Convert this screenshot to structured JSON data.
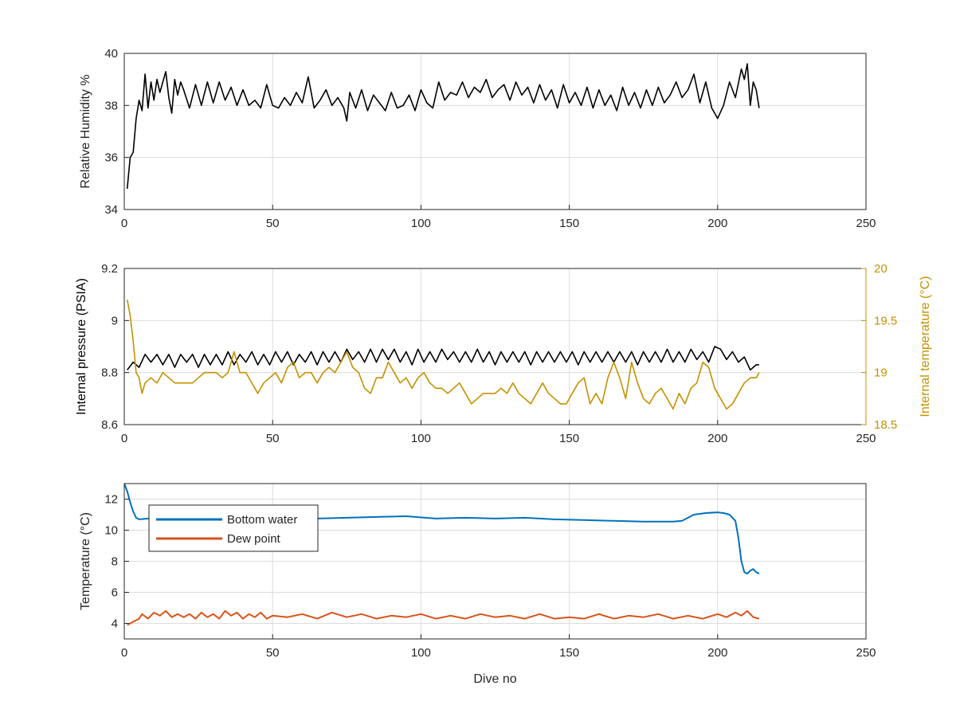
{
  "chart_data": [
    {
      "type": "line",
      "panel": "top",
      "xlabel": "",
      "ylabel": "Relative Humidity %",
      "xlim": [
        0,
        250
      ],
      "ylim": [
        34,
        40
      ],
      "xticks": [
        0,
        50,
        100,
        150,
        200,
        250
      ],
      "yticks": [
        34,
        36,
        38,
        40
      ],
      "grid": true,
      "series": [
        {
          "color": "#000000",
          "x": [
            1,
            2,
            3,
            4,
            5,
            6,
            7,
            8,
            9,
            10,
            11,
            12,
            13,
            14,
            15,
            16,
            17,
            18,
            19,
            20,
            22,
            24,
            26,
            28,
            30,
            32,
            34,
            36,
            38,
            40,
            42,
            44,
            46,
            48,
            50,
            52,
            54,
            56,
            58,
            60,
            62,
            64,
            66,
            68,
            70,
            72,
            74,
            75,
            76,
            78,
            80,
            82,
            84,
            86,
            88,
            90,
            92,
            94,
            96,
            98,
            100,
            102,
            104,
            106,
            108,
            110,
            112,
            114,
            116,
            118,
            120,
            122,
            124,
            126,
            128,
            130,
            132,
            134,
            136,
            138,
            140,
            142,
            144,
            146,
            148,
            150,
            152,
            154,
            156,
            158,
            160,
            162,
            164,
            166,
            168,
            170,
            172,
            174,
            176,
            178,
            180,
            182,
            184,
            186,
            188,
            190,
            192,
            194,
            196,
            198,
            200,
            202,
            204,
            206,
            208,
            209,
            210,
            211,
            212,
            213,
            214
          ],
          "y": [
            34.8,
            36.0,
            36.2,
            37.5,
            38.2,
            37.8,
            39.2,
            37.9,
            38.9,
            38.2,
            39.0,
            38.5,
            38.9,
            39.3,
            38.3,
            37.7,
            39.0,
            38.4,
            38.9,
            38.6,
            37.9,
            38.8,
            38.0,
            38.9,
            38.1,
            38.9,
            38.2,
            38.7,
            38.0,
            38.6,
            38.0,
            38.2,
            37.9,
            38.8,
            38.0,
            37.9,
            38.3,
            38.0,
            38.5,
            38.1,
            39.1,
            37.9,
            38.2,
            38.6,
            38.0,
            38.3,
            37.9,
            37.4,
            38.5,
            37.9,
            38.6,
            37.8,
            38.4,
            38.1,
            37.8,
            38.5,
            37.9,
            38.0,
            38.4,
            37.8,
            38.6,
            38.1,
            37.9,
            38.9,
            38.2,
            38.5,
            38.4,
            38.9,
            38.3,
            38.7,
            38.5,
            39.0,
            38.3,
            38.6,
            38.8,
            38.2,
            38.9,
            38.4,
            38.7,
            38.1,
            38.8,
            38.2,
            38.6,
            37.9,
            38.8,
            38.1,
            38.5,
            38.0,
            38.7,
            37.9,
            38.6,
            38.0,
            38.4,
            37.8,
            38.7,
            38.0,
            38.5,
            37.9,
            38.6,
            38.0,
            38.7,
            38.1,
            38.4,
            38.9,
            38.3,
            38.6,
            39.2,
            38.1,
            38.9,
            37.9,
            37.5,
            38.0,
            38.9,
            38.3,
            39.4,
            39.0,
            39.6,
            38.0,
            38.9,
            38.6,
            37.9
          ]
        }
      ]
    },
    {
      "type": "line",
      "panel": "middle",
      "xlabel": "",
      "ylabel": "Internal pressure (PSIA)",
      "ylabel_right": "Internal temperature (°C)",
      "xlim": [
        0,
        250
      ],
      "ylim": [
        8.6,
        9.2
      ],
      "ylim_right": [
        18.5,
        20
      ],
      "xticks": [
        0,
        50,
        100,
        150,
        200,
        250
      ],
      "yticks": [
        8.6,
        8.8,
        9,
        9.2
      ],
      "yticks_right": [
        18.5,
        19,
        19.5,
        20
      ],
      "grid": true,
      "series": [
        {
          "axis": "left",
          "color": "#000000",
          "x": [
            1,
            3,
            5,
            7,
            9,
            11,
            13,
            15,
            17,
            19,
            21,
            23,
            25,
            27,
            29,
            31,
            33,
            35,
            37,
            39,
            41,
            43,
            45,
            47,
            49,
            51,
            53,
            55,
            57,
            59,
            61,
            63,
            65,
            67,
            69,
            71,
            73,
            75,
            77,
            79,
            81,
            83,
            85,
            87,
            89,
            91,
            93,
            95,
            97,
            99,
            101,
            103,
            105,
            107,
            109,
            111,
            113,
            115,
            117,
            119,
            121,
            123,
            125,
            127,
            129,
            131,
            133,
            135,
            137,
            139,
            141,
            143,
            145,
            147,
            149,
            151,
            153,
            155,
            157,
            159,
            161,
            163,
            165,
            167,
            169,
            171,
            173,
            175,
            177,
            179,
            181,
            183,
            185,
            187,
            189,
            191,
            193,
            195,
            197,
            199,
            201,
            203,
            205,
            207,
            209,
            211,
            213,
            214
          ],
          "y": [
            8.81,
            8.84,
            8.82,
            8.87,
            8.84,
            8.87,
            8.83,
            8.87,
            8.82,
            8.87,
            8.84,
            8.87,
            8.82,
            8.87,
            8.83,
            8.87,
            8.83,
            8.88,
            8.83,
            8.87,
            8.84,
            8.88,
            8.83,
            8.87,
            8.83,
            8.88,
            8.84,
            8.88,
            8.83,
            8.87,
            8.84,
            8.88,
            8.83,
            8.88,
            8.84,
            8.88,
            8.84,
            8.89,
            8.85,
            8.88,
            8.84,
            8.89,
            8.84,
            8.89,
            8.85,
            8.89,
            8.84,
            8.88,
            8.83,
            8.89,
            8.84,
            8.88,
            8.84,
            8.89,
            8.85,
            8.88,
            8.84,
            8.88,
            8.84,
            8.89,
            8.84,
            8.88,
            8.83,
            8.88,
            8.84,
            8.88,
            8.84,
            8.88,
            8.83,
            8.88,
            8.84,
            8.88,
            8.84,
            8.88,
            8.84,
            8.88,
            8.83,
            8.88,
            8.84,
            8.88,
            8.84,
            8.88,
            8.84,
            8.88,
            8.84,
            8.88,
            8.83,
            8.88,
            8.84,
            8.88,
            8.84,
            8.89,
            8.84,
            8.88,
            8.84,
            8.89,
            8.85,
            8.88,
            8.84,
            8.9,
            8.89,
            8.85,
            8.88,
            8.84,
            8.86,
            8.81,
            8.83,
            8.83
          ]
        },
        {
          "axis": "right",
          "color": "#C49100",
          "x": [
            1,
            2,
            3,
            4,
            5,
            6,
            7,
            9,
            11,
            13,
            15,
            17,
            19,
            21,
            23,
            25,
            27,
            29,
            31,
            33,
            35,
            37,
            39,
            41,
            43,
            45,
            47,
            49,
            51,
            53,
            55,
            57,
            59,
            61,
            63,
            65,
            67,
            69,
            71,
            73,
            75,
            77,
            79,
            81,
            83,
            85,
            87,
            89,
            91,
            93,
            95,
            97,
            99,
            101,
            103,
            105,
            107,
            109,
            111,
            113,
            115,
            117,
            119,
            121,
            123,
            125,
            127,
            129,
            131,
            133,
            135,
            137,
            139,
            141,
            143,
            145,
            147,
            149,
            151,
            153,
            155,
            157,
            159,
            161,
            163,
            165,
            167,
            169,
            171,
            173,
            175,
            177,
            179,
            181,
            183,
            185,
            187,
            189,
            191,
            193,
            195,
            197,
            199,
            201,
            203,
            205,
            207,
            209,
            211,
            213,
            214
          ],
          "y": [
            19.7,
            19.55,
            19.3,
            19.0,
            18.95,
            18.8,
            18.9,
            18.95,
            18.9,
            19.0,
            18.95,
            18.9,
            18.9,
            18.9,
            18.9,
            18.95,
            19.0,
            19.0,
            19.0,
            18.95,
            19.0,
            19.2,
            19.0,
            19.0,
            18.9,
            18.8,
            18.9,
            18.95,
            19.0,
            18.9,
            19.05,
            19.1,
            18.95,
            19.0,
            19.0,
            18.9,
            19.0,
            19.05,
            19.0,
            19.1,
            19.2,
            19.05,
            19.0,
            18.85,
            18.8,
            18.95,
            18.95,
            19.1,
            19.0,
            18.9,
            18.95,
            18.85,
            18.95,
            19.0,
            18.9,
            18.85,
            18.85,
            18.8,
            18.85,
            18.9,
            18.8,
            18.7,
            18.75,
            18.8,
            18.8,
            18.8,
            18.85,
            18.8,
            18.9,
            18.8,
            18.75,
            18.7,
            18.8,
            18.9,
            18.8,
            18.75,
            18.7,
            18.7,
            18.8,
            18.9,
            18.95,
            18.7,
            18.8,
            18.7,
            18.95,
            19.1,
            18.95,
            18.75,
            19.1,
            18.9,
            18.75,
            18.7,
            18.8,
            18.85,
            18.75,
            18.65,
            18.8,
            18.7,
            18.85,
            18.9,
            19.1,
            19.05,
            18.85,
            18.75,
            18.65,
            18.7,
            18.8,
            18.9,
            18.95,
            18.95,
            19.0
          ]
        }
      ]
    },
    {
      "type": "line",
      "panel": "bottom",
      "xlabel": "Dive no",
      "ylabel": "Temperature (°C)",
      "xlim": [
        0,
        250
      ],
      "ylim": [
        3,
        13
      ],
      "xticks": [
        0,
        50,
        100,
        150,
        200,
        250
      ],
      "yticks": [
        4,
        6,
        8,
        10,
        12
      ],
      "grid": true,
      "legend_position": "top-left",
      "series": [
        {
          "name": "Bottom water",
          "color": "#0072BD",
          "x": [
            0,
            1,
            2,
            3,
            4,
            5,
            8,
            15,
            25,
            35,
            45,
            55,
            65,
            75,
            85,
            95,
            105,
            115,
            125,
            135,
            145,
            155,
            165,
            175,
            185,
            188,
            192,
            196,
            200,
            202,
            204,
            206,
            207,
            208,
            209,
            210,
            211,
            212,
            213,
            214
          ],
          "y": [
            13.0,
            12.5,
            11.8,
            11.2,
            10.8,
            10.7,
            10.75,
            10.8,
            10.75,
            10.8,
            10.75,
            10.8,
            10.75,
            10.8,
            10.85,
            10.9,
            10.75,
            10.8,
            10.75,
            10.8,
            10.7,
            10.65,
            10.6,
            10.55,
            10.55,
            10.6,
            11.0,
            11.1,
            11.15,
            11.1,
            11.0,
            10.6,
            9.5,
            8.0,
            7.3,
            7.2,
            7.4,
            7.5,
            7.3,
            7.2
          ]
        },
        {
          "name": "Dew point",
          "color": "#D95319",
          "x": [
            1,
            3,
            5,
            6,
            8,
            10,
            12,
            14,
            16,
            18,
            20,
            22,
            24,
            26,
            28,
            30,
            32,
            34,
            36,
            38,
            40,
            42,
            44,
            46,
            48,
            50,
            55,
            60,
            65,
            70,
            75,
            80,
            85,
            90,
            95,
            100,
            105,
            110,
            115,
            120,
            125,
            130,
            135,
            140,
            145,
            150,
            155,
            160,
            165,
            170,
            175,
            180,
            185,
            190,
            195,
            200,
            203,
            206,
            208,
            210,
            212,
            214
          ],
          "y": [
            3.9,
            4.1,
            4.3,
            4.6,
            4.3,
            4.7,
            4.5,
            4.8,
            4.4,
            4.6,
            4.4,
            4.6,
            4.3,
            4.7,
            4.4,
            4.6,
            4.3,
            4.8,
            4.5,
            4.7,
            4.3,
            4.6,
            4.4,
            4.7,
            4.3,
            4.5,
            4.4,
            4.6,
            4.3,
            4.7,
            4.4,
            4.6,
            4.3,
            4.5,
            4.4,
            4.6,
            4.3,
            4.5,
            4.3,
            4.6,
            4.4,
            4.5,
            4.3,
            4.6,
            4.3,
            4.4,
            4.3,
            4.6,
            4.3,
            4.5,
            4.4,
            4.6,
            4.3,
            4.5,
            4.3,
            4.6,
            4.4,
            4.7,
            4.5,
            4.8,
            4.4,
            4.3
          ]
        }
      ]
    }
  ]
}
